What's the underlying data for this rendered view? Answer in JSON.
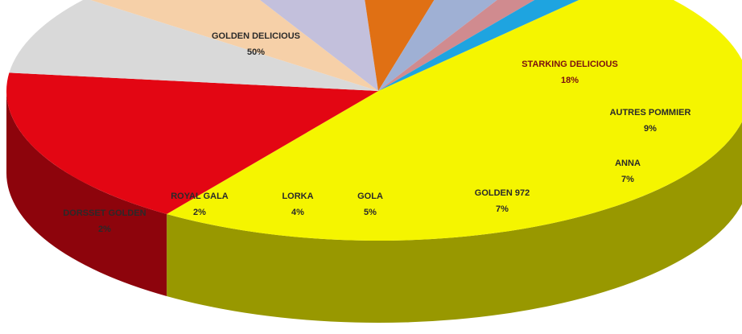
{
  "chart_data": {
    "type": "pie",
    "variant": "3d",
    "title": "",
    "legend": "none",
    "slices": [
      {
        "label": "GOLDEN DELICIOUS",
        "value_label": "50%",
        "value": 50,
        "color": "#f5f500"
      },
      {
        "label": "STARKING DELICIOUS",
        "value_label": "18%",
        "value": 18,
        "color": "#e30613"
      },
      {
        "label": "AUTRES POMMIER",
        "value_label": "9%",
        "value": 9,
        "color": "#d9d9d9"
      },
      {
        "label": "ANNA",
        "value_label": "7%",
        "value": 7,
        "color": "#f6d0a8"
      },
      {
        "label": "GOLDEN 972",
        "value_label": "7%",
        "value": 7,
        "color": "#c3c0dc"
      },
      {
        "label": "GOLA",
        "value_label": "5%",
        "value": 5,
        "color": "#e07014"
      },
      {
        "label": "LORKA",
        "value_label": "4%",
        "value": 4,
        "color": "#9fb0d4"
      },
      {
        "label": "ROYAL GALA",
        "value_label": "2%",
        "value": 2,
        "color": "#d08b8f"
      },
      {
        "label": "DORSSET GOLDEN",
        "value_label": "2%",
        "value": 2,
        "color": "#1ea4e0"
      }
    ]
  }
}
